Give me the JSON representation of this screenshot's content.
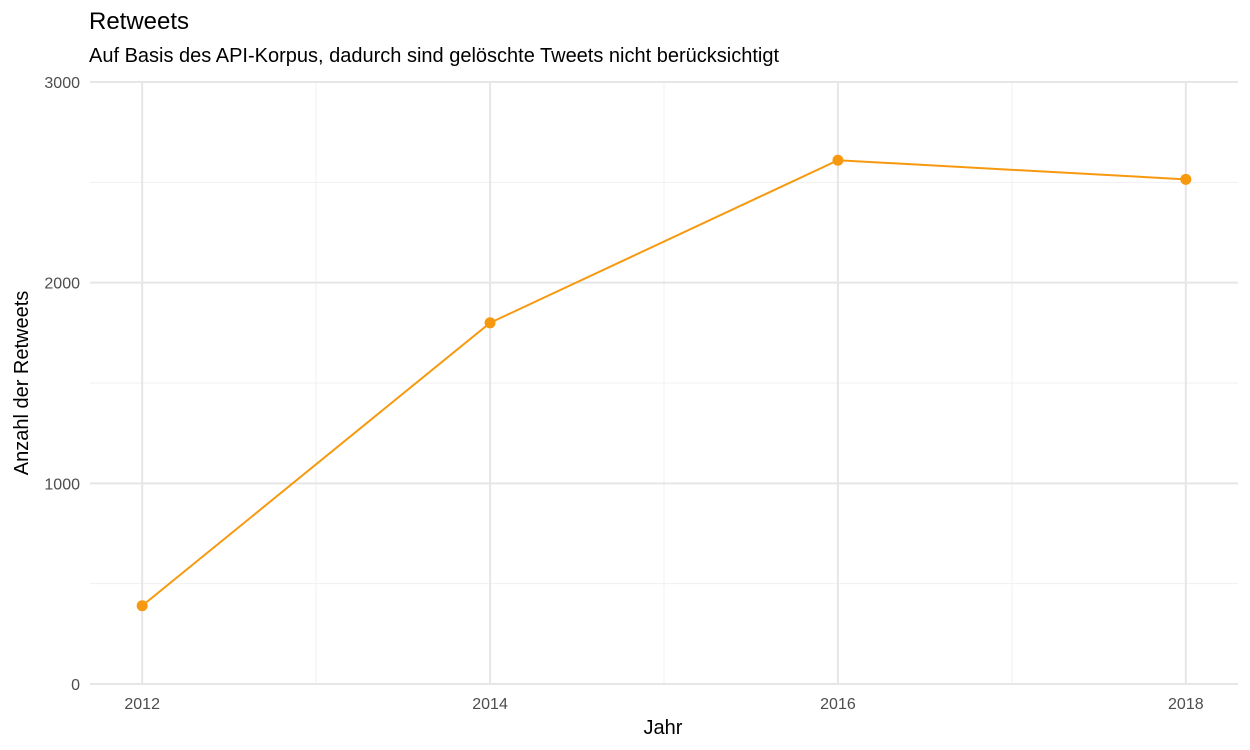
{
  "chart_data": {
    "type": "line",
    "title": "Retweets",
    "subtitle": "Auf Basis des API-Korpus, dadurch sind gelöschte Tweets nicht berücksichtigt",
    "xlabel": "Jahr",
    "ylabel": "Anzahl der Retweets",
    "x": [
      2012,
      2014,
      2016,
      2018
    ],
    "series": [
      {
        "values": [
          390,
          1800,
          2610,
          2515
        ]
      }
    ],
    "xlim": [
      2011.7,
      2018.3
    ],
    "ylim": [
      0,
      3000
    ],
    "x_ticks": [
      2012,
      2014,
      2016,
      2018
    ],
    "x_tick_labels": [
      "2012",
      "2014",
      "2016",
      "2018"
    ],
    "x_minor_ticks": [
      2013,
      2015,
      2017
    ],
    "y_ticks": [
      0,
      1000,
      2000,
      3000
    ],
    "y_tick_labels": [
      "0",
      "1000",
      "2000",
      "3000"
    ],
    "y_minor_ticks": [
      500,
      1500,
      2500
    ],
    "grid": true,
    "legend": "none",
    "colors": {
      "line": "#F7990F",
      "grid_major": "#e6e6e6",
      "grid_minor": "#f0f0f0"
    }
  }
}
